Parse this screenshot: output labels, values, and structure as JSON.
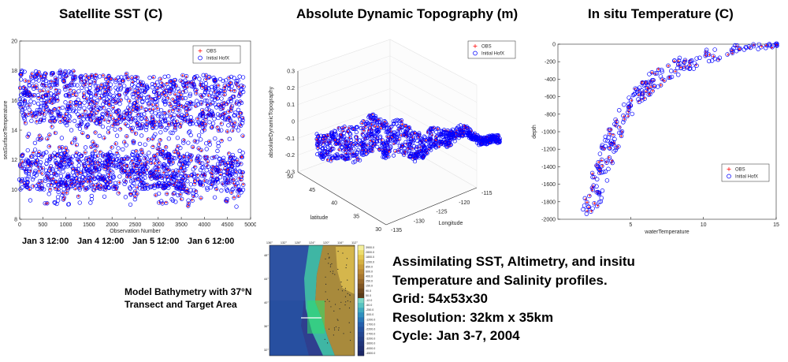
{
  "titles": {
    "sst": "Satellite SST (C)",
    "adt": "Absolute Dynamic Topography (m)",
    "insitu": "In situ Temperature (C)"
  },
  "legend": {
    "obs": "OBS",
    "hofx": "Initial HofX"
  },
  "colors": {
    "obs": "#ff0000",
    "hofx": "#0000ff",
    "grid": "#e6e6e6",
    "axis": "#262626"
  },
  "dates": [
    "Jan 3 12:00",
    "Jan 4 12:00",
    "Jan 5 12:00",
    "Jan 6 12:00"
  ],
  "caption": [
    "Model Bathymetry with 37°N",
    "Transect and Target Area"
  ],
  "bullets": [
    "Assimilating SST, Altimetry, and insitu",
    "Temperature and Salinity profiles.",
    "Grid: 54x53x30",
    "Resolution: 32km x 35km",
    "Cycle: Jan 3-7, 2004"
  ],
  "chart_data": [
    {
      "type": "scatter",
      "title": "Satellite SST (C)",
      "xlabel": "Observation Number",
      "ylabel": "seaSurfaceTemperature",
      "xlim": [
        0,
        5000
      ],
      "ylim": [
        8,
        20
      ],
      "xticks": [
        0,
        500,
        1000,
        1500,
        2000,
        2500,
        3000,
        3500,
        4000,
        4500,
        5000
      ],
      "yticks": [
        8,
        10,
        12,
        14,
        16,
        18,
        20
      ],
      "legend_position": "top-right",
      "series": [
        {
          "name": "OBS",
          "marker": "+",
          "color": "#ff0000"
        },
        {
          "name": "Initial HofX",
          "marker": "o",
          "color": "#0000ff"
        }
      ],
      "clusters": [
        {
          "day": "Jan 3 12:00",
          "x_range": [
            0,
            1200
          ],
          "y_range": [
            9.0,
            18.0
          ]
        },
        {
          "day": "Jan 4 12:00",
          "x_range": [
            1200,
            2400
          ],
          "y_range": [
            9.0,
            17.8
          ]
        },
        {
          "day": "Jan 5 12:00",
          "x_range": [
            2400,
            3500
          ],
          "y_range": [
            9.0,
            17.6
          ]
        },
        {
          "day": "Jan 6 12:00",
          "x_range": [
            3500,
            4850
          ],
          "y_range": [
            8.8,
            17.7
          ]
        }
      ]
    },
    {
      "type": "scatter",
      "title": "Absolute Dynamic Topography (m)",
      "xlabel": "Longitude",
      "ylabel": "latitude",
      "zlabel": "absoluteDynamicTopography",
      "xlim": [
        -135,
        -115
      ],
      "ylim": [
        30,
        50
      ],
      "zlim": [
        -0.3,
        0.3
      ],
      "xticks": [
        -135,
        -130,
        -125,
        -120,
        -115
      ],
      "yticks": [
        30,
        35,
        40,
        45,
        50
      ],
      "zticks": [
        -0.3,
        -0.2,
        -0.1,
        0,
        0.1,
        0.2,
        0.3
      ],
      "legend_position": "top-right",
      "series": [
        {
          "name": "OBS",
          "marker": "+",
          "color": "#ff0000"
        },
        {
          "name": "Initial HofX",
          "marker": "o",
          "color": "#0000ff"
        }
      ]
    },
    {
      "type": "scatter",
      "title": "In situ Temperature (C)",
      "xlabel": "waterTemperature",
      "ylabel": "depth",
      "xlim": [
        0,
        15
      ],
      "ylim": [
        -2000,
        0
      ],
      "xticks": [
        5,
        10,
        15
      ],
      "yticks": [
        -2000,
        -1800,
        -1600,
        -1400,
        -1200,
        -1000,
        -800,
        -600,
        -400,
        -200,
        0
      ],
      "legend_position": "right",
      "series": [
        {
          "name": "OBS",
          "marker": "+",
          "color": "#ff0000"
        },
        {
          "name": "Initial HofX",
          "marker": "o",
          "color": "#0000ff"
        }
      ],
      "profile": [
        [
          2.0,
          -1950
        ],
        [
          2.5,
          -1750
        ],
        [
          3.0,
          -1450
        ],
        [
          3.5,
          -1200
        ],
        [
          4.0,
          -950
        ],
        [
          4.5,
          -800
        ],
        [
          5.5,
          -600
        ],
        [
          6.5,
          -420
        ],
        [
          8.0,
          -280
        ],
        [
          10.0,
          -150
        ],
        [
          12.0,
          -60
        ],
        [
          15.0,
          0
        ]
      ]
    }
  ],
  "map": {
    "lon_labels": [
      "136°",
      "132°",
      "128°",
      "124°",
      "120°",
      "116°",
      "112°"
    ],
    "lat_labels": [
      "48°",
      "44°",
      "40°",
      "36°",
      "32°"
    ],
    "colorbar": [
      "3900.0",
      "2800.0",
      "1800.0",
      "1200.0",
      "850.0",
      "600.0",
      "400.0",
      "250.0",
      "150.0",
      "90.0",
      "50.0",
      "-12.0",
      "-50.0",
      "-250.0",
      "-500.0",
      "-1200.0",
      "-1700.0",
      "-2200.0",
      "-2700.0",
      "-3200.0",
      "-3600.0",
      "-4000.0",
      "-4500.0"
    ],
    "colors": {
      "ocean_deep": "#2f3f8f",
      "ocean_mid": "#1e63b5",
      "shelf": "#3fb6a4",
      "land": "#a88a3c",
      "land_high": "#e0c050"
    }
  }
}
